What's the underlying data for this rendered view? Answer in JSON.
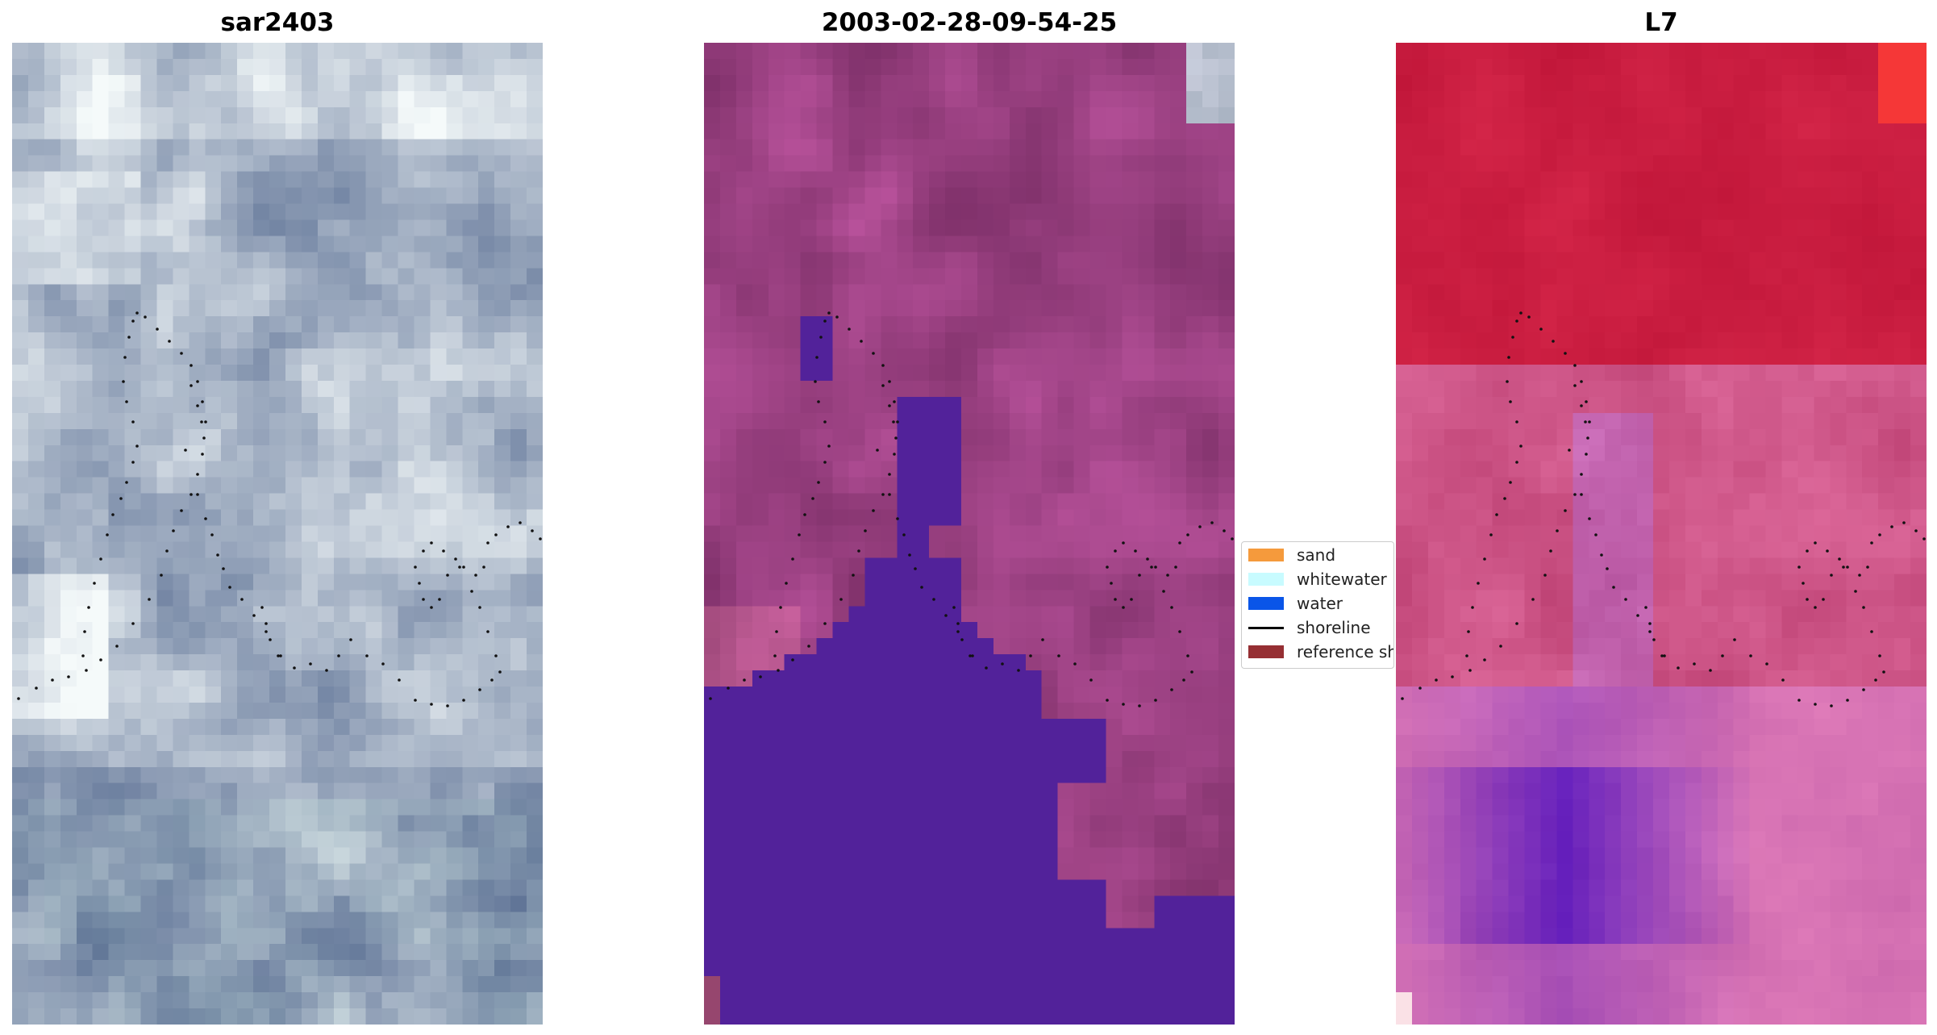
{
  "panels": [
    {
      "title": "sar2403"
    },
    {
      "title": "2003-02-28-09-54-25"
    },
    {
      "title": "L7"
    }
  ],
  "legend": {
    "items": [
      {
        "label": "sand",
        "color": "#f59a3c",
        "kind": "patch"
      },
      {
        "label": "whitewater",
        "color": "#c8fbff",
        "kind": "patch"
      },
      {
        "label": "water",
        "color": "#0a55e8",
        "kind": "patch"
      },
      {
        "label": "shoreline",
        "color": "#000000",
        "kind": "line"
      },
      {
        "label": "reference shoreline",
        "color": "#962f33",
        "kind": "patch"
      }
    ]
  }
}
